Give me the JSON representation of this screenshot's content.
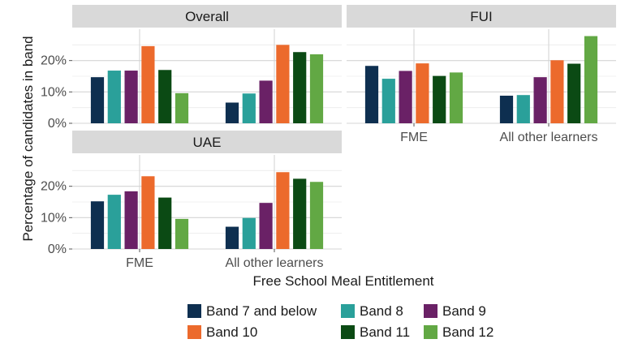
{
  "chart_data": {
    "type": "bar",
    "xlabel": "Free School Meal Entitlement",
    "ylabel": "Percentage of candidates in band",
    "ylim": [
      0,
      30
    ],
    "yticks": [
      "0%",
      "10%",
      "20%"
    ],
    "ytick_values": [
      0,
      10,
      20
    ],
    "categories": [
      "FME",
      "All other learners"
    ],
    "grid": true,
    "legend_position": "bottom",
    "series_meta": [
      {
        "name": "Band 7 and below",
        "color": "#0e2f50"
      },
      {
        "name": "Band 8",
        "color": "#2aa09a"
      },
      {
        "name": "Band 9",
        "color": "#6a2166"
      },
      {
        "name": "Band 10",
        "color": "#ec6a2c"
      },
      {
        "name": "Band 11",
        "color": "#0b4a14"
      },
      {
        "name": "Band 12",
        "color": "#62a844"
      }
    ],
    "panels": [
      {
        "title": "Overall",
        "values": [
          [
            14.7,
            6.6
          ],
          [
            16.8,
            9.5
          ],
          [
            16.8,
            13.6
          ],
          [
            24.6,
            25.0
          ],
          [
            17.0,
            22.7
          ],
          [
            9.6,
            22.0
          ]
        ]
      },
      {
        "title": "FUI",
        "values": [
          [
            18.3,
            8.8
          ],
          [
            14.2,
            9.0
          ],
          [
            16.7,
            14.7
          ],
          [
            19.1,
            20.1
          ],
          [
            15.1,
            19.0
          ],
          [
            16.2,
            27.8
          ]
        ]
      },
      {
        "title": "UAE",
        "values": [
          [
            15.2,
            7.1
          ],
          [
            17.3,
            9.9
          ],
          [
            18.4,
            14.7
          ],
          [
            23.2,
            24.5
          ],
          [
            16.4,
            22.4
          ],
          [
            9.6,
            21.4
          ]
        ]
      }
    ]
  }
}
